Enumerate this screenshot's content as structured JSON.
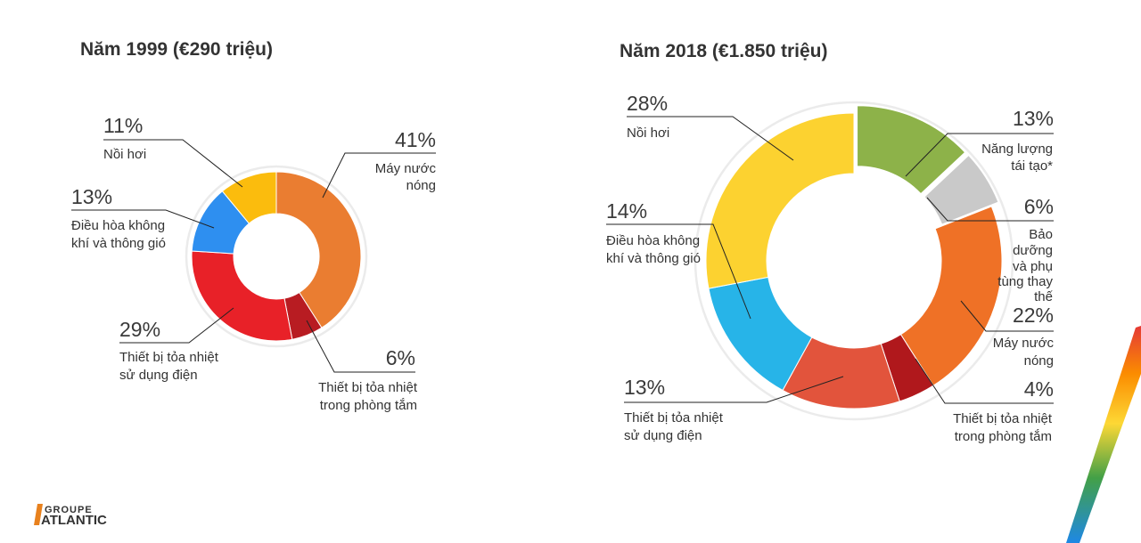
{
  "chart_data": [
    {
      "type": "pie",
      "title": "Năm 1999 (€290 triệu)",
      "slices": [
        {
          "name": "Máy nước nóng",
          "lines": [
            "Máy nước",
            "nóng"
          ],
          "value": 41,
          "label": "41%",
          "color": "#ea7d31"
        },
        {
          "name": "Thiết bị tỏa nhiệt trong phòng tắm",
          "lines": [
            "Thiết bị tỏa nhiệt",
            "trong phòng tắm"
          ],
          "value": 6,
          "label": "6%",
          "color": "#b81c22"
        },
        {
          "name": "Thiết bị tỏa nhiệt sử dụng điện",
          "lines": [
            "Thiết bị tỏa nhiệt",
            "sử dụng điện"
          ],
          "value": 29,
          "label": "29%",
          "color": "#e82128"
        },
        {
          "name": "Điều hòa không khí và thông gió",
          "lines": [
            "Điều hòa không",
            "khí và thông gió"
          ],
          "value": 13,
          "label": "13%",
          "color": "#2e8ff0"
        },
        {
          "name": "Nồi hơi",
          "lines": [
            "Nồi hơi"
          ],
          "value": 11,
          "label": "11%",
          "color": "#fbbc0d"
        }
      ]
    },
    {
      "type": "pie",
      "title": "Năm 2018 (€1.850 triệu)",
      "slices": [
        {
          "name": "Năng lượng tái tạo*",
          "lines": [
            "Năng lượng",
            "tái tạo*"
          ],
          "value": 13,
          "label": "13%",
          "color": "#8db249"
        },
        {
          "name": "Bảo dưỡng và phụ tùng thay thế",
          "lines": [
            "Bảo",
            "dưỡng",
            "và phụ",
            "tùng thay",
            "thế"
          ],
          "value": 6,
          "label": "6%",
          "color": "#c9c9c9"
        },
        {
          "name": "Máy nước nóng",
          "lines": [
            "Máy nước",
            "nóng"
          ],
          "value": 22,
          "label": "22%",
          "color": "#ef7126"
        },
        {
          "name": "Thiết bị tỏa nhiệt trong phòng tắm",
          "lines": [
            "Thiết bị tỏa nhiệt",
            "trong phòng tắm"
          ],
          "value": 4,
          "label": "4%",
          "color": "#b0181c"
        },
        {
          "name": "Thiết bị tỏa nhiệt sử dụng điện",
          "lines": [
            "Thiết bị tỏa nhiệt",
            "sử dụng điện"
          ],
          "value": 13,
          "label": "13%",
          "color": "#e2543c"
        },
        {
          "name": "Điều hòa không khí và thông gió",
          "lines": [
            "Điều hòa không",
            "khí và thông gió"
          ],
          "value": 14,
          "label": "14%",
          "color": "#27b4e8"
        },
        {
          "name": "Nồi hơi",
          "lines": [
            "Nồi hơi"
          ],
          "value": 28,
          "label": "28%",
          "color": "#fcd230"
        }
      ]
    }
  ],
  "logo": {
    "line1": "GROUPE",
    "line2": "ATLANTIC"
  },
  "colors": {
    "rainbow": [
      "#e53935",
      "#fb8c00",
      "#fdd835",
      "#43a047",
      "#1e88e5"
    ]
  }
}
